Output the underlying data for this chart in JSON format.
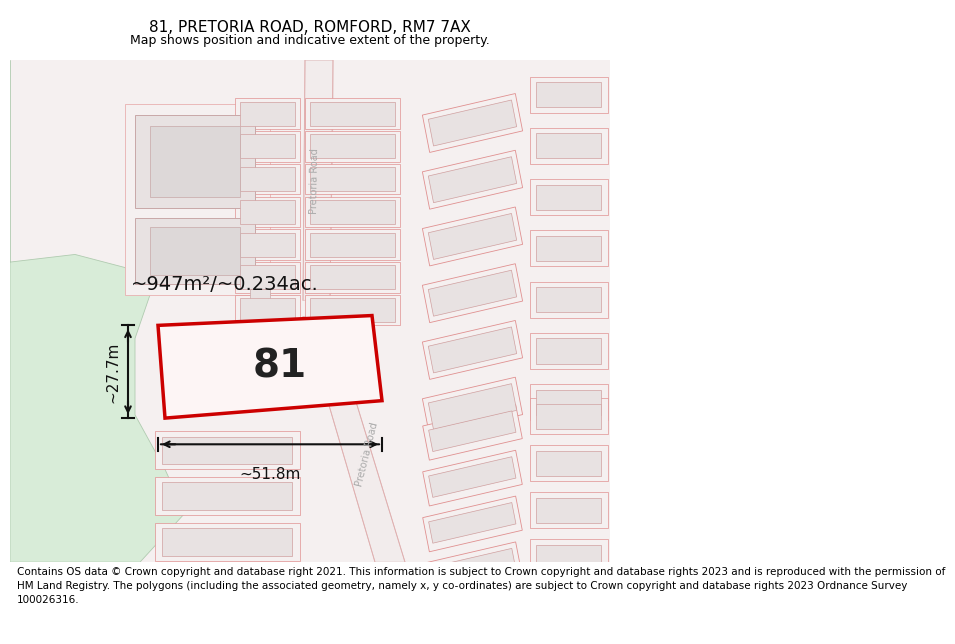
{
  "title": "81, PRETORIA ROAD, ROMFORD, RM7 7AX",
  "subtitle": "Map shows position and indicative extent of the property.",
  "footer_line1": "Contains OS data © Crown copyright and database right 2021. This information is subject to Crown copyright and database rights 2023 and is reproduced with the permission of",
  "footer_line2": "HM Land Registry. The polygons (including the associated geometry, namely x, y co-ordinates) are subject to Crown copyright and database rights 2023 Ordnance Survey",
  "footer_line3": "100026316.",
  "area_label": "~947m²/~0.234ac.",
  "number_label": "81",
  "width_label": "~51.8m",
  "height_label": "~27.7m",
  "road_label": "Pretoria Road",
  "map_bg": "#f5f0f0",
  "white_bg": "#ffffff",
  "green_color": "#d8ecd8",
  "road_fill": "#f2ecec",
  "building_face": "#e8e2e2",
  "building_edge": "#e09090",
  "building_inner_face": "#ddd8d8",
  "highlight_edge": "#cc0000",
  "highlight_face": "#fdf5f5",
  "dim_line_color": "#111111",
  "road_text_color": "#aaaaaa",
  "title_fontsize": 11,
  "subtitle_fontsize": 9,
  "footer_fontsize": 7.5,
  "area_fontsize": 14,
  "number_fontsize": 28,
  "dim_fontsize": 11,
  "road_fontsize": 7
}
